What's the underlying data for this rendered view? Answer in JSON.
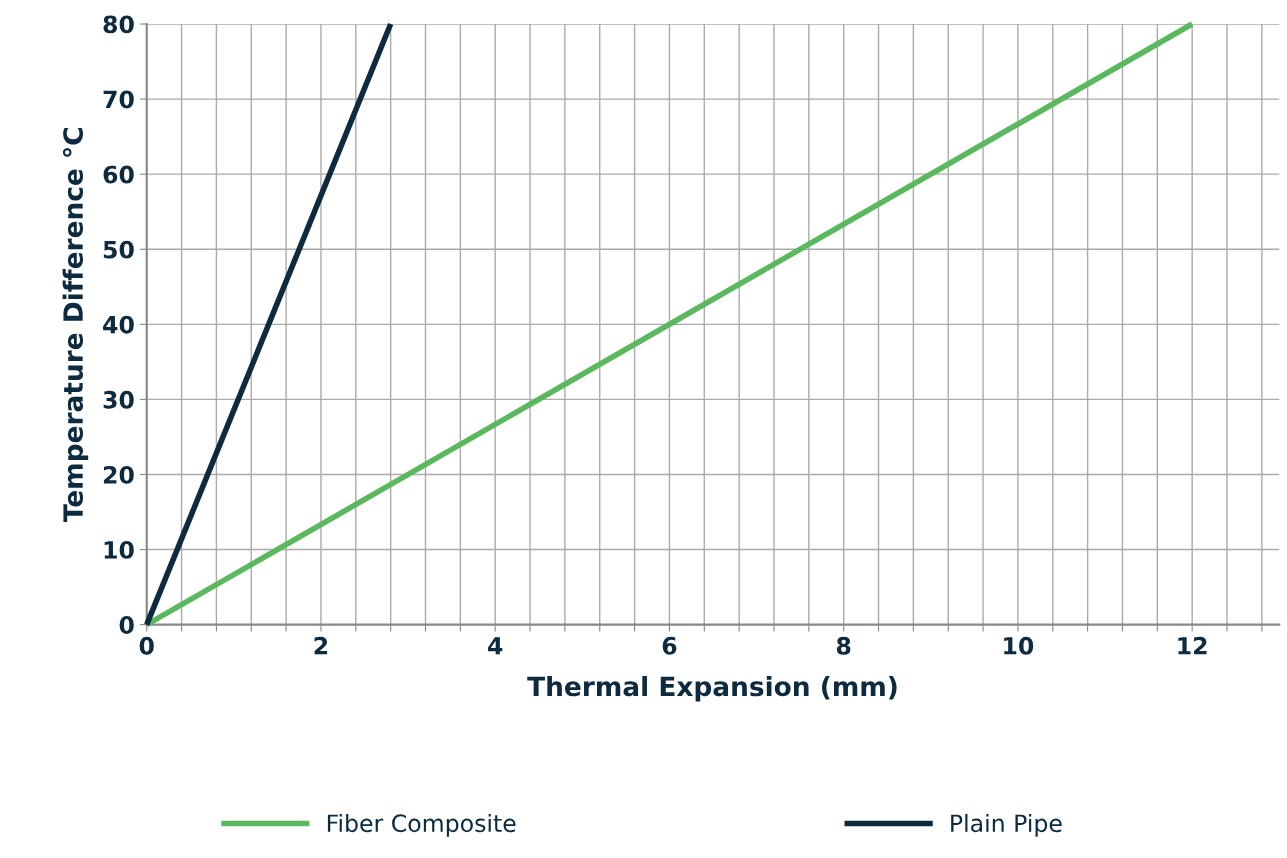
{
  "chart_data": {
    "type": "line",
    "xlabel": "Thermal Expansion (mm)",
    "ylabel": "Temperature Difference °C",
    "xlim": [
      0,
      13
    ],
    "ylim": [
      0,
      80
    ],
    "xticks": [
      0,
      {
        "value": 0.4,
        "label": null
      },
      {
        "value": 0.8,
        "label": null
      },
      {
        "value": 1.2,
        "label": null
      },
      {
        "value": 1.6,
        "label": null
      },
      2,
      {
        "value": 2.4,
        "label": null
      },
      {
        "value": 2.8,
        "label": null
      },
      {
        "value": 3.2,
        "label": null
      },
      {
        "value": 3.6,
        "label": null
      },
      4,
      {
        "value": 4.4,
        "label": null
      },
      {
        "value": 4.8,
        "label": null
      },
      {
        "value": 5.2,
        "label": null
      },
      {
        "value": 5.6,
        "label": null
      },
      6,
      {
        "value": 6.4,
        "label": null
      },
      {
        "value": 6.8,
        "label": null
      },
      {
        "value": 7.2,
        "label": null
      },
      {
        "value": 7.6,
        "label": null
      },
      8,
      {
        "value": 8.4,
        "label": null
      },
      {
        "value": 8.8,
        "label": null
      },
      {
        "value": 9.2,
        "label": null
      },
      {
        "value": 9.6,
        "label": null
      },
      10,
      {
        "value": 10.4,
        "label": null
      },
      {
        "value": 10.8,
        "label": null
      },
      {
        "value": 11.2,
        "label": null
      },
      {
        "value": 11.6,
        "label": null
      },
      12,
      {
        "value": 12.4,
        "label": null
      },
      {
        "value": 12.8,
        "label": null
      }
    ],
    "yticks": [
      0,
      10,
      20,
      30,
      40,
      50,
      60,
      70,
      80
    ],
    "grid": true,
    "legend": "bottom",
    "marker": "none",
    "line_style": "solid",
    "series": [
      {
        "name": "Fiber Composite",
        "color": "#5cb85f",
        "x": [
          0,
          12
        ],
        "values": [
          0,
          80
        ]
      },
      {
        "name": "Plain Pipe",
        "color": "#0d2a3f",
        "x": [
          0,
          2.8
        ],
        "values": [
          0,
          80
        ]
      }
    ]
  }
}
